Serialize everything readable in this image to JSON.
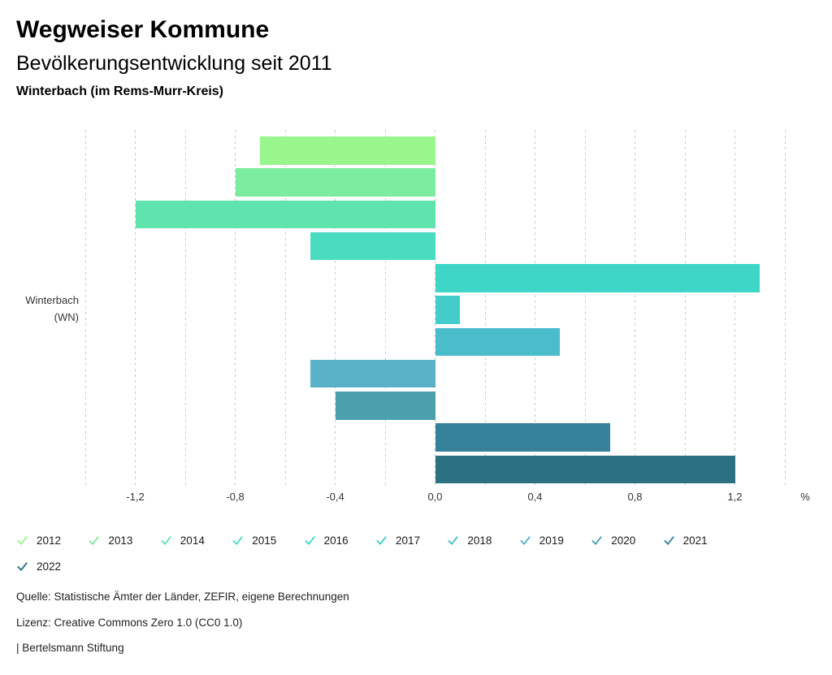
{
  "header": {
    "title": "Wegweiser Kommune",
    "subtitle": "Bevölkerungsentwicklung seit 2011",
    "location": "Winterbach (im Rems-Murr-Kreis)"
  },
  "chart_data": {
    "type": "bar",
    "orientation": "horizontal",
    "title": "Bevölkerungsentwicklung seit 2011",
    "row_label": {
      "line1": "Winterbach",
      "line2": "(WN)"
    },
    "unit": "%",
    "xlim": [
      -1.4,
      1.4
    ],
    "gridline_step": 0.2,
    "grid": "vertical-dashed",
    "legend_position": "bottom",
    "x_ticks": [
      {
        "value": -1.2,
        "label": "-1,2"
      },
      {
        "value": -0.8,
        "label": "-0,8"
      },
      {
        "value": -0.4,
        "label": "-0,4"
      },
      {
        "value": 0.0,
        "label": "0,0"
      },
      {
        "value": 0.4,
        "label": "0,4"
      },
      {
        "value": 0.8,
        "label": "0,8"
      },
      {
        "value": 1.2,
        "label": "1,2"
      }
    ],
    "series": [
      {
        "name": "2012",
        "value": -0.7,
        "color": "#99F68D"
      },
      {
        "name": "2013",
        "value": -0.8,
        "color": "#7CEC9E"
      },
      {
        "name": "2014",
        "value": -1.2,
        "color": "#60E4AE"
      },
      {
        "name": "2015",
        "value": -0.5,
        "color": "#4ADCC0"
      },
      {
        "name": "2016",
        "value": 1.3,
        "color": "#3ED7C7"
      },
      {
        "name": "2017",
        "value": 0.1,
        "color": "#43CCCA"
      },
      {
        "name": "2018",
        "value": 0.5,
        "color": "#4ABDCD"
      },
      {
        "name": "2019",
        "value": -0.5,
        "color": "#58B1C6"
      },
      {
        "name": "2020",
        "value": -0.4,
        "color": "#4BA0AE"
      },
      {
        "name": "2021",
        "value": 0.7,
        "color": "#36829B"
      },
      {
        "name": "2022",
        "value": 1.2,
        "color": "#2B7183"
      }
    ]
  },
  "footer": {
    "source": "Quelle: Statistische Ämter der Länder, ZEFIR, eigene Berechnungen",
    "license": "Lizenz: Creative Commons Zero 1.0 (CC0 1.0)",
    "attribution": "| Bertelsmann Stiftung"
  }
}
